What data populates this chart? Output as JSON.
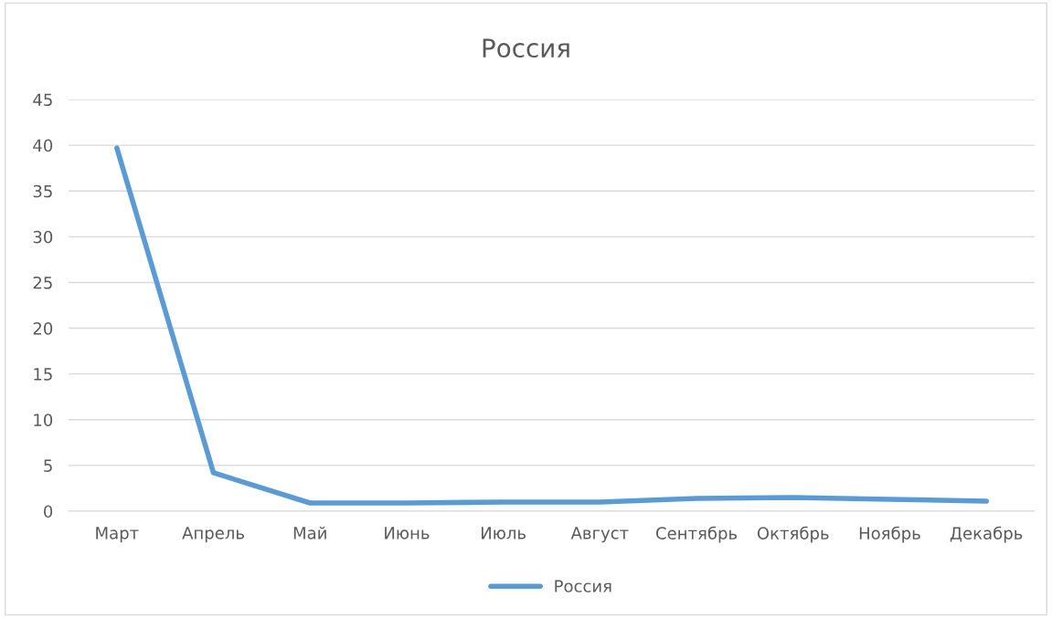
{
  "chart_data": {
    "type": "line",
    "title": "Россия",
    "categories": [
      "Март",
      "Апрель",
      "Май",
      "Июнь",
      "Июль",
      "Август",
      "Сентябрь",
      "Октябрь",
      "Ноябрь",
      "Декабрь"
    ],
    "series": [
      {
        "name": "Россия",
        "color": "#5b9bd5",
        "values": [
          39.7,
          4.2,
          0.9,
          0.9,
          1.0,
          1.0,
          1.4,
          1.5,
          1.3,
          1.1
        ]
      }
    ],
    "ylim": [
      0,
      45
    ],
    "yticks": [
      0,
      5,
      10,
      15,
      20,
      25,
      30,
      35,
      40,
      45
    ],
    "grid": "y",
    "legend": "bottom",
    "marker": "none",
    "line_style": "solid"
  }
}
